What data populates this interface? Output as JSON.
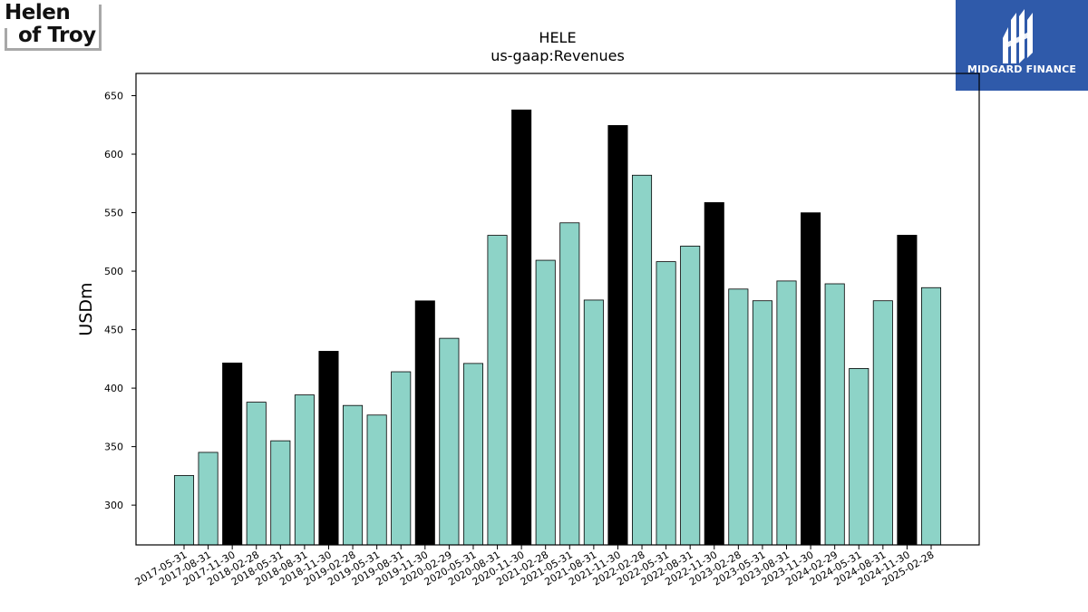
{
  "logos": {
    "left_text_1": "Helen",
    "left_text_2": "of Troy",
    "right_text": "MIDGARD FINANCE"
  },
  "colors": {
    "bar_normal": "#8dd3c7",
    "bar_highlight": "#000000",
    "logo_right_bg": "#2f5aaa"
  },
  "chart_data": {
    "type": "bar",
    "title": "HELE",
    "subtitle": "us-gaap:Revenues",
    "xlabel": "",
    "ylabel": "USDm",
    "ylim": [
      266,
      669
    ],
    "yticks": [
      300,
      350,
      400,
      450,
      500,
      550,
      600,
      650
    ],
    "grid": false,
    "categories": [
      "2017-05-31",
      "2017-08-31",
      "2017-11-30",
      "2018-02-28",
      "2018-05-31",
      "2018-08-31",
      "2018-11-30",
      "2019-02-28",
      "2019-05-31",
      "2019-08-31",
      "2019-11-30",
      "2020-02-29",
      "2020-05-31",
      "2020-08-31",
      "2020-11-30",
      "2021-02-28",
      "2021-05-31",
      "2021-08-31",
      "2021-11-30",
      "2022-02-28",
      "2022-05-31",
      "2022-08-31",
      "2022-11-30",
      "2023-02-28",
      "2023-05-31",
      "2023-08-31",
      "2023-11-30",
      "2024-02-29",
      "2024-05-31",
      "2024-08-31",
      "2024-11-30",
      "2025-02-28"
    ],
    "values": [
      325.3,
      345.1,
      421.5,
      388.0,
      355.0,
      394.2,
      431.5,
      385.2,
      377.0,
      414.0,
      474.6,
      442.6,
      421.1,
      530.6,
      637.8,
      509.3,
      541.3,
      475.3,
      624.5,
      582.0,
      508.1,
      521.4,
      558.6,
      484.7,
      474.7,
      491.6,
      549.9,
      489.2,
      416.8,
      474.7,
      530.7,
      485.9
    ],
    "highlighted": [
      false,
      false,
      true,
      false,
      false,
      false,
      true,
      false,
      false,
      false,
      true,
      false,
      false,
      false,
      true,
      false,
      false,
      false,
      true,
      false,
      false,
      false,
      true,
      false,
      false,
      false,
      true,
      false,
      false,
      false,
      true,
      false
    ]
  }
}
